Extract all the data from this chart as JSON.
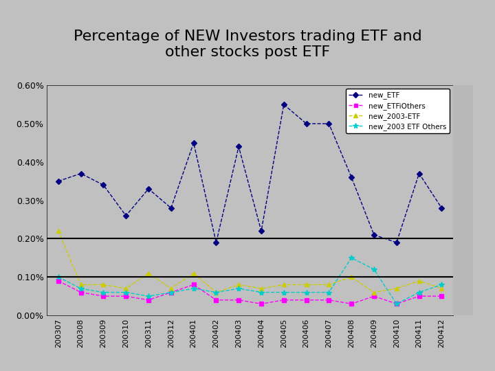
{
  "title": "Percentage of NEW Investors trading ETF and\nother stocks post ETF",
  "x_labels": [
    "200307",
    "200308",
    "200309",
    "200310",
    "200311",
    "200312",
    "200401",
    "200402",
    "200403",
    "200404",
    "200405",
    "200406",
    "200407",
    "200408",
    "200409",
    "200410",
    "200411",
    "200412"
  ],
  "new_ETF": [
    0.0035,
    0.0037,
    0.0034,
    0.0026,
    0.0033,
    0.0028,
    0.0045,
    0.0019,
    0.0044,
    0.0022,
    0.0055,
    0.005,
    0.005,
    0.0036,
    0.0021,
    0.0019,
    0.0037,
    0.0028
  ],
  "new_ETFiOthers": [
    0.0009,
    0.0006,
    0.0005,
    0.0005,
    0.0004,
    0.0006,
    0.0008,
    0.0004,
    0.0004,
    0.0003,
    0.0004,
    0.0004,
    0.0004,
    0.0003,
    0.0005,
    0.0003,
    0.0005,
    0.0005
  ],
  "new_2003ETF": [
    0.0022,
    0.0008,
    0.0008,
    0.0007,
    0.0011,
    0.0007,
    0.0011,
    0.0006,
    0.0008,
    0.0007,
    0.0008,
    0.0008,
    0.0008,
    0.001,
    0.0006,
    0.0007,
    0.0009,
    0.0007
  ],
  "new_2003ETFOthers": [
    0.001,
    0.0007,
    0.0006,
    0.0006,
    0.0005,
    0.0006,
    0.0007,
    0.0006,
    0.0007,
    0.0006,
    0.0006,
    0.0006,
    0.0006,
    0.0015,
    0.0012,
    0.0003,
    0.0006,
    0.0008
  ],
  "color_ETF": "#000080",
  "color_ETFiOthers": "#FF00FF",
  "color_2003ETF": "#CCCC00",
  "color_2003ETFOthers": "#00CCCC",
  "hline1": 0.002,
  "hline2": 0.001,
  "ylim": [
    0.0,
    0.006
  ],
  "yticks": [
    0.0,
    0.001,
    0.002,
    0.003,
    0.004,
    0.005,
    0.006
  ],
  "ytick_labels": [
    "0.00%",
    "0.10%",
    "0.20%",
    "0.30%",
    "0.40%",
    "0.50%",
    "0.60%"
  ],
  "legend_labels": [
    "new_ETF",
    "new_ETFiOthers",
    "new_2003-ETF",
    "new_2003 ETF Others"
  ],
  "bg_color": "#C0C0C0",
  "fig_facecolor": "#C0C0C0",
  "title_fontsize": 16,
  "right_strip_color": "#D3D3D3"
}
